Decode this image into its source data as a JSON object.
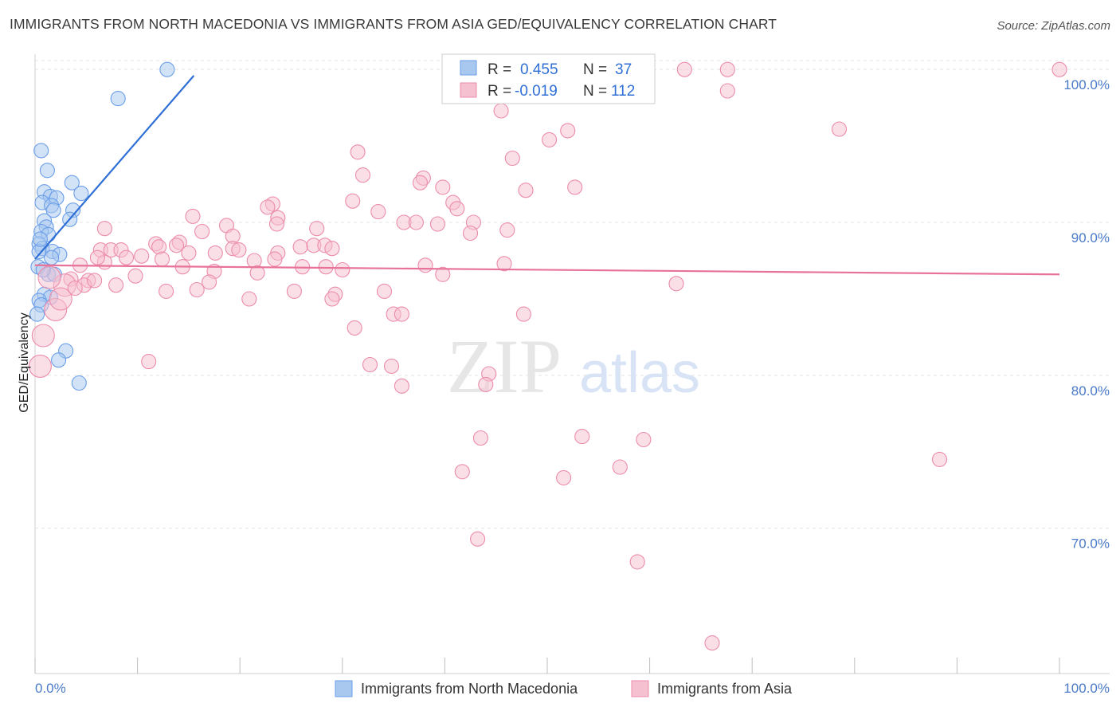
{
  "chart_data": {
    "type": "scatter",
    "title": "IMMIGRANTS FROM NORTH MACEDONIA VS IMMIGRANTS FROM ASIA GED/EQUIVALENCY CORRELATION CHART",
    "source": "Source: ZipAtlas.com",
    "ylabel": "GED/Equivalency",
    "xlabel": "",
    "xlim": [
      0,
      100
    ],
    "ylim": [
      60.5,
      101
    ],
    "y_ticks": [
      {
        "value": 100,
        "label": "100.0%"
      },
      {
        "value": 90,
        "label": "90.0%"
      },
      {
        "value": 80,
        "label": "80.0%"
      },
      {
        "value": 70,
        "label": "70.0%"
      }
    ],
    "x_tick_labels": [
      {
        "value": 0,
        "label": "0.0%"
      },
      {
        "value": 100,
        "label": "100.0%"
      }
    ],
    "grid": true,
    "watermark": {
      "zip": "ZIP",
      "atlas": "atlas"
    },
    "legend_position": "bottom",
    "series": [
      {
        "name": "Immigrants from North Macedonia",
        "color": "#6a9ee8",
        "fill": "#a8c8f0",
        "stats": {
          "r_label": "R =",
          "r_value": "0.455",
          "n_label": "N =",
          "n_value": "37"
        },
        "trend": {
          "x1": 0,
          "y1": 87.6,
          "x2": 15.5,
          "y2": 99.6,
          "color": "#2f6fd6"
        },
        "points": [
          {
            "x": 12.9,
            "y": 100.0
          },
          {
            "x": 8.1,
            "y": 98.1
          },
          {
            "x": 0.6,
            "y": 94.7
          },
          {
            "x": 1.2,
            "y": 93.4
          },
          {
            "x": 3.6,
            "y": 92.6
          },
          {
            "x": 0.9,
            "y": 92.0
          },
          {
            "x": 4.5,
            "y": 91.9
          },
          {
            "x": 1.5,
            "y": 91.7
          },
          {
            "x": 2.1,
            "y": 91.6
          },
          {
            "x": 0.7,
            "y": 91.3
          },
          {
            "x": 1.6,
            "y": 91.1
          },
          {
            "x": 1.8,
            "y": 90.8
          },
          {
            "x": 3.7,
            "y": 90.8
          },
          {
            "x": 3.4,
            "y": 90.2
          },
          {
            "x": 0.9,
            "y": 90.1
          },
          {
            "x": 1.1,
            "y": 89.7
          },
          {
            "x": 0.6,
            "y": 89.4
          },
          {
            "x": 1.3,
            "y": 89.2
          },
          {
            "x": 0.4,
            "y": 88.6
          },
          {
            "x": 0.7,
            "y": 88.3
          },
          {
            "x": 0.4,
            "y": 88.1
          },
          {
            "x": 1.7,
            "y": 88.1
          },
          {
            "x": 2.4,
            "y": 87.9
          },
          {
            "x": 1.6,
            "y": 87.7
          },
          {
            "x": 0.3,
            "y": 87.1
          },
          {
            "x": 1.3,
            "y": 86.6
          },
          {
            "x": 1.9,
            "y": 86.6
          },
          {
            "x": 0.9,
            "y": 85.3
          },
          {
            "x": 1.5,
            "y": 85.1
          },
          {
            "x": 0.4,
            "y": 84.9
          },
          {
            "x": 0.6,
            "y": 84.6
          },
          {
            "x": 0.2,
            "y": 84.0
          },
          {
            "x": 3.0,
            "y": 81.6
          },
          {
            "x": 2.3,
            "y": 81.0
          },
          {
            "x": 4.3,
            "y": 79.5
          },
          {
            "x": 0.5,
            "y": 88.9
          },
          {
            "x": 0.8,
            "y": 86.9
          }
        ]
      },
      {
        "name": "Immigrants from Asia",
        "color": "#ec8cab",
        "fill": "#f5c0d0",
        "stats": {
          "r_label": "R =",
          "r_value": "-0.019",
          "n_label": "N =",
          "n_value": "112"
        },
        "trend": {
          "x1": 0,
          "y1": 87.2,
          "x2": 100,
          "y2": 86.6,
          "color": "#e8739a"
        },
        "points": [
          {
            "x": 63.4,
            "y": 100.0
          },
          {
            "x": 67.6,
            "y": 100.0
          },
          {
            "x": 100.0,
            "y": 100.0
          },
          {
            "x": 53.8,
            "y": 98.4
          },
          {
            "x": 67.6,
            "y": 98.6
          },
          {
            "x": 45.5,
            "y": 97.3
          },
          {
            "x": 52.0,
            "y": 96.0
          },
          {
            "x": 78.5,
            "y": 96.1
          },
          {
            "x": 50.2,
            "y": 95.4
          },
          {
            "x": 31.5,
            "y": 94.6
          },
          {
            "x": 46.6,
            "y": 94.2
          },
          {
            "x": 32.0,
            "y": 93.1
          },
          {
            "x": 37.9,
            "y": 92.9
          },
          {
            "x": 37.6,
            "y": 92.6
          },
          {
            "x": 39.8,
            "y": 92.3
          },
          {
            "x": 52.7,
            "y": 92.3
          },
          {
            "x": 47.9,
            "y": 92.1
          },
          {
            "x": 31.0,
            "y": 91.4
          },
          {
            "x": 40.8,
            "y": 91.3
          },
          {
            "x": 23.2,
            "y": 91.2
          },
          {
            "x": 22.7,
            "y": 91.0
          },
          {
            "x": 41.2,
            "y": 90.9
          },
          {
            "x": 33.5,
            "y": 90.7
          },
          {
            "x": 15.4,
            "y": 90.4
          },
          {
            "x": 23.7,
            "y": 90.3
          },
          {
            "x": 36.0,
            "y": 90.0
          },
          {
            "x": 37.2,
            "y": 90.0
          },
          {
            "x": 39.3,
            "y": 89.9
          },
          {
            "x": 42.8,
            "y": 90.0
          },
          {
            "x": 23.6,
            "y": 89.9
          },
          {
            "x": 18.7,
            "y": 89.8
          },
          {
            "x": 27.5,
            "y": 89.6
          },
          {
            "x": 6.8,
            "y": 89.6
          },
          {
            "x": 16.3,
            "y": 89.4
          },
          {
            "x": 46.1,
            "y": 89.5
          },
          {
            "x": 42.5,
            "y": 89.3
          },
          {
            "x": 19.3,
            "y": 89.1
          },
          {
            "x": 14.1,
            "y": 88.7
          },
          {
            "x": 11.8,
            "y": 88.6
          },
          {
            "x": 13.8,
            "y": 88.5
          },
          {
            "x": 27.2,
            "y": 88.5
          },
          {
            "x": 28.3,
            "y": 88.5
          },
          {
            "x": 12.1,
            "y": 88.4
          },
          {
            "x": 25.9,
            "y": 88.4
          },
          {
            "x": 19.3,
            "y": 88.3
          },
          {
            "x": 19.9,
            "y": 88.2
          },
          {
            "x": 6.4,
            "y": 88.2
          },
          {
            "x": 7.4,
            "y": 88.2
          },
          {
            "x": 8.4,
            "y": 88.2
          },
          {
            "x": 29.0,
            "y": 88.3
          },
          {
            "x": 15.0,
            "y": 88.0
          },
          {
            "x": 17.6,
            "y": 88.0
          },
          {
            "x": 23.7,
            "y": 88.0
          },
          {
            "x": 10.4,
            "y": 87.8
          },
          {
            "x": 8.9,
            "y": 87.7
          },
          {
            "x": 12.4,
            "y": 87.6
          },
          {
            "x": 21.4,
            "y": 87.5
          },
          {
            "x": 23.4,
            "y": 87.6
          },
          {
            "x": 6.8,
            "y": 87.4
          },
          {
            "x": 4.4,
            "y": 87.2
          },
          {
            "x": 45.8,
            "y": 87.3
          },
          {
            "x": 38.1,
            "y": 87.2
          },
          {
            "x": 26.1,
            "y": 87.1
          },
          {
            "x": 28.4,
            "y": 87.1
          },
          {
            "x": 14.4,
            "y": 87.1
          },
          {
            "x": 30.0,
            "y": 86.9
          },
          {
            "x": 17.5,
            "y": 86.8
          },
          {
            "x": 21.7,
            "y": 86.7
          },
          {
            "x": 39.8,
            "y": 86.6
          },
          {
            "x": 9.8,
            "y": 86.5
          },
          {
            "x": 3.5,
            "y": 86.3
          },
          {
            "x": 5.2,
            "y": 86.2
          },
          {
            "x": 17.0,
            "y": 86.1
          },
          {
            "x": 4.8,
            "y": 85.9
          },
          {
            "x": 2.9,
            "y": 85.9
          },
          {
            "x": 7.9,
            "y": 85.9
          },
          {
            "x": 62.6,
            "y": 86.0
          },
          {
            "x": 15.8,
            "y": 85.6
          },
          {
            "x": 25.3,
            "y": 85.5
          },
          {
            "x": 12.8,
            "y": 85.5
          },
          {
            "x": 34.1,
            "y": 85.5
          },
          {
            "x": 29.3,
            "y": 85.3
          },
          {
            "x": 20.9,
            "y": 85.0
          },
          {
            "x": 29.0,
            "y": 85.0
          },
          {
            "x": 35.0,
            "y": 84.0
          },
          {
            "x": 47.7,
            "y": 84.0
          },
          {
            "x": 35.8,
            "y": 84.0
          },
          {
            "x": 2.0,
            "y": 84.3
          },
          {
            "x": 31.2,
            "y": 83.1
          },
          {
            "x": 0.8,
            "y": 82.6
          },
          {
            "x": 32.7,
            "y": 80.7
          },
          {
            "x": 34.8,
            "y": 80.6
          },
          {
            "x": 11.1,
            "y": 80.9
          },
          {
            "x": 0.5,
            "y": 80.6
          },
          {
            "x": 44.3,
            "y": 80.1
          },
          {
            "x": 35.8,
            "y": 79.3
          },
          {
            "x": 44.0,
            "y": 79.4
          },
          {
            "x": 53.4,
            "y": 76.0
          },
          {
            "x": 43.5,
            "y": 75.9
          },
          {
            "x": 59.4,
            "y": 75.8
          },
          {
            "x": 88.3,
            "y": 74.5
          },
          {
            "x": 57.1,
            "y": 74.0
          },
          {
            "x": 41.7,
            "y": 73.7
          },
          {
            "x": 51.6,
            "y": 73.3
          },
          {
            "x": 43.2,
            "y": 69.3
          },
          {
            "x": 58.8,
            "y": 67.8
          },
          {
            "x": 66.1,
            "y": 62.5
          },
          {
            "x": 5.8,
            "y": 86.2
          },
          {
            "x": 3.9,
            "y": 85.7
          },
          {
            "x": 1.4,
            "y": 86.4
          },
          {
            "x": 2.5,
            "y": 85.0
          },
          {
            "x": 6.1,
            "y": 87.7
          }
        ]
      }
    ]
  }
}
